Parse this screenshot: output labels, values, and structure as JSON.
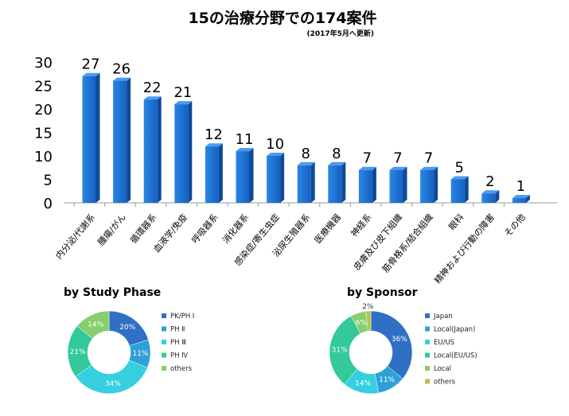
{
  "chart_data": [
    {
      "type": "bar",
      "title": "15の治療分野での174案件",
      "subtitle": "(2017年5月へ更新)",
      "categories": [
        "内分泌/代謝系",
        "腫瘍/がん",
        "循環器系",
        "血液学/免疫",
        "呼吸器系",
        "消化器系",
        "感染症/寄生虫症",
        "泌尿生殖器系",
        "医療機器",
        "神経系",
        "皮膚及び皮下組織",
        "筋骨格系/結合組織",
        "眼科",
        "精神および行動の障害",
        "その他"
      ],
      "values": [
        27,
        26,
        22,
        21,
        12,
        11,
        10,
        8,
        8,
        7,
        7,
        7,
        5,
        2,
        1
      ],
      "yticks": [
        "0",
        "5",
        "10",
        "15",
        "20",
        "25",
        "30"
      ],
      "ylim": [
        0,
        30
      ],
      "xlabel": "",
      "ylabel": "",
      "grid": false,
      "color": "#1a6fd0"
    },
    {
      "type": "pie",
      "title": "by Study Phase",
      "labels": [
        "PK/PH Ⅰ",
        "PH Ⅱ",
        "PH Ⅲ",
        "PH Ⅳ",
        "others"
      ],
      "values": [
        20,
        11,
        34,
        21,
        14
      ],
      "value_labels": [
        "20%",
        "11%",
        "34%",
        "21%",
        "14%"
      ],
      "colors": [
        "#2f6fc4",
        "#2f9fd8",
        "#35cfe0",
        "#33c99a",
        "#86cf6a"
      ],
      "legend": "right"
    },
    {
      "type": "pie",
      "title": "by Sponsor",
      "labels": [
        "Japan",
        "Local(Japan)",
        "EU/US",
        "Local(EU/US)",
        "Local",
        "others"
      ],
      "values": [
        36,
        11,
        14,
        31,
        6,
        2
      ],
      "value_labels": [
        "36%",
        "11%",
        "14%",
        "31%",
        "6%",
        "2%"
      ],
      "colors": [
        "#2f6fc4",
        "#2f9fd8",
        "#35cfe0",
        "#33c99a",
        "#86cf6a",
        "#b5c34a"
      ],
      "legend": "right"
    }
  ]
}
